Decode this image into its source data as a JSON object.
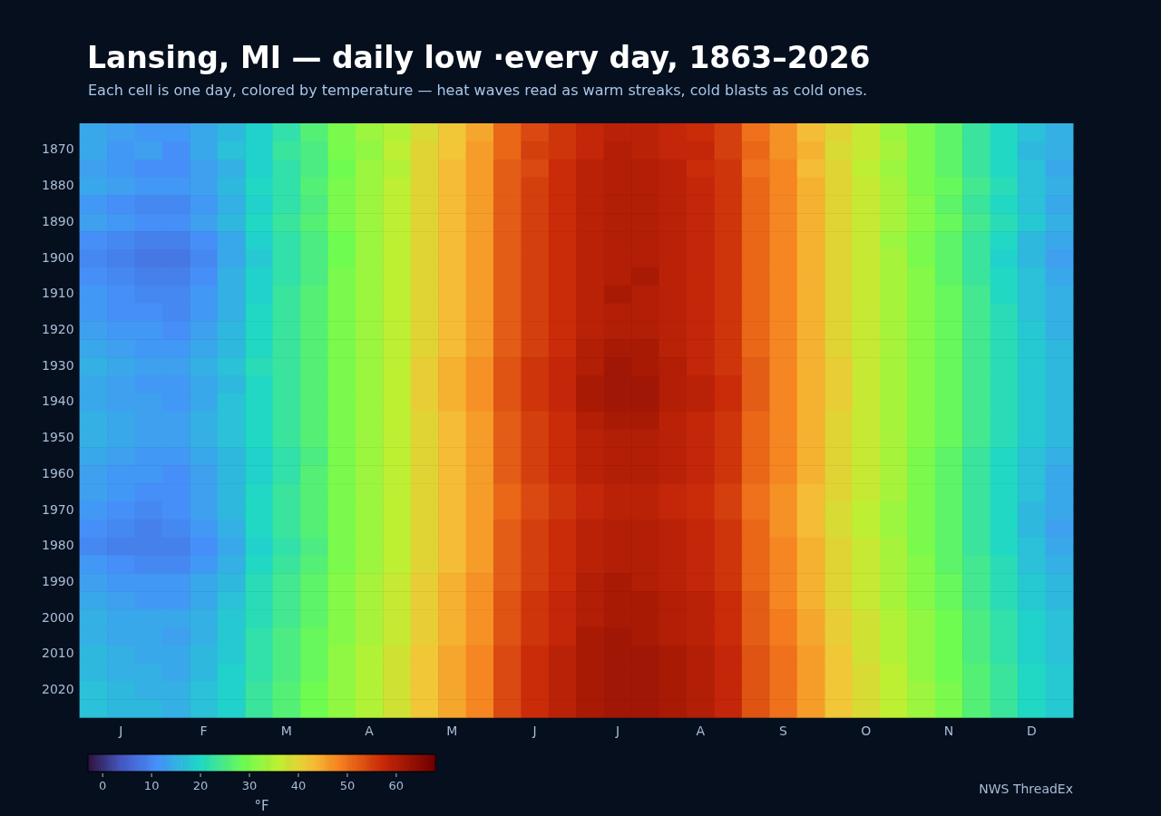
{
  "chart_data": {
    "type": "heatmap",
    "title": "Lansing, MI — daily low ·every day, 1863–2026",
    "subtitle": "Each cell is one day, colored by temperature — heat waves read as warm streaks, cold blasts as cold ones.",
    "categories": [
      null,
      "J",
      null,
      null,
      "F",
      null,
      null,
      "M",
      null,
      null,
      "A",
      null,
      null,
      "M",
      null,
      null,
      "J",
      null,
      null,
      "J",
      null,
      null,
      "A",
      null,
      null,
      "S",
      null,
      null,
      "O",
      null,
      null,
      "N",
      null,
      null,
      "D",
      null
    ],
    "y_categories": [
      null,
      "1870",
      null,
      "1880",
      null,
      "1890",
      null,
      "1900",
      null,
      "1910",
      null,
      "1920",
      null,
      "1930",
      null,
      "1940",
      null,
      "1950",
      null,
      "1960",
      null,
      "1970",
      null,
      "1980",
      null,
      "1990",
      null,
      "2000",
      null,
      "2010",
      null,
      "2020",
      null
    ],
    "cells": [
      [
        14,
        13,
        12,
        12,
        14,
        16,
        19,
        22,
        26,
        30,
        33,
        35,
        39,
        42,
        45,
        51,
        54,
        56,
        58,
        59,
        59,
        58,
        57,
        55,
        50,
        47,
        43,
        40,
        37,
        33,
        30,
        27,
        23,
        20,
        17,
        15
      ],
      [
        14,
        12,
        13,
        11,
        14,
        17,
        19,
        23,
        25,
        30,
        32,
        36,
        40,
        42,
        46,
        51,
        55,
        56,
        58,
        60,
        59,
        58,
        58,
        55,
        51,
        47,
        44,
        39,
        37,
        34,
        30,
        27,
        23,
        20,
        16,
        15
      ],
      [
        13,
        12,
        11,
        11,
        13,
        15,
        19,
        22,
        25,
        29,
        33,
        35,
        40,
        43,
        46,
        52,
        54,
        57,
        59,
        60,
        60,
        59,
        57,
        56,
        50,
        48,
        43,
        40,
        36,
        33,
        30,
        27,
        23,
        20,
        17,
        14
      ],
      [
        14,
        13,
        12,
        12,
        13,
        16,
        20,
        22,
        26,
        30,
        33,
        36,
        40,
        43,
        46,
        52,
        55,
        57,
        59,
        60,
        60,
        59,
        58,
        56,
        51,
        48,
        44,
        40,
        37,
        34,
        30,
        28,
        24,
        21,
        17,
        15
      ],
      [
        12,
        11,
        10,
        10,
        12,
        15,
        19,
        22,
        25,
        30,
        33,
        36,
        40,
        43,
        46,
        52,
        55,
        57,
        59,
        60,
        60,
        59,
        58,
        56,
        51,
        48,
        44,
        40,
        37,
        34,
        31,
        27,
        23,
        20,
        17,
        14
      ],
      [
        13,
        12,
        11,
        11,
        13,
        16,
        20,
        23,
        26,
        30,
        33,
        36,
        40,
        43,
        46,
        52,
        55,
        57,
        59,
        60,
        60,
        59,
        58,
        56,
        51,
        48,
        44,
        40,
        37,
        34,
        31,
        28,
        24,
        21,
        18,
        15
      ],
      [
        11,
        10,
        9,
        9,
        11,
        14,
        19,
        22,
        25,
        29,
        33,
        36,
        40,
        43,
        46,
        52,
        55,
        57,
        59,
        60,
        60,
        59,
        58,
        56,
        51,
        48,
        44,
        40,
        37,
        33,
        30,
        27,
        23,
        20,
        16,
        14
      ],
      [
        10,
        9,
        8,
        8,
        10,
        14,
        18,
        22,
        25,
        29,
        33,
        36,
        40,
        43,
        46,
        52,
        55,
        57,
        59,
        60,
        60,
        59,
        58,
        56,
        51,
        48,
        44,
        40,
        37,
        34,
        30,
        27,
        23,
        19,
        16,
        13
      ],
      [
        11,
        10,
        9,
        9,
        11,
        15,
        19,
        22,
        25,
        30,
        33,
        36,
        40,
        43,
        46,
        52,
        55,
        57,
        59,
        60,
        61,
        59,
        58,
        56,
        51,
        48,
        44,
        40,
        37,
        34,
        31,
        27,
        23,
        20,
        17,
        14
      ],
      [
        12,
        11,
        10,
        10,
        12,
        15,
        19,
        23,
        26,
        30,
        33,
        36,
        40,
        43,
        46,
        52,
        55,
        57,
        59,
        61,
        60,
        59,
        58,
        56,
        51,
        48,
        44,
        40,
        37,
        34,
        31,
        28,
        24,
        20,
        17,
        15
      ],
      [
        12,
        11,
        11,
        10,
        12,
        15,
        20,
        23,
        26,
        30,
        33,
        36,
        40,
        43,
        46,
        52,
        55,
        57,
        59,
        60,
        60,
        59,
        58,
        56,
        51,
        48,
        44,
        40,
        37,
        34,
        31,
        28,
        24,
        21,
        17,
        15
      ],
      [
        13,
        12,
        12,
        11,
        13,
        16,
        20,
        23,
        26,
        30,
        33,
        36,
        40,
        43,
        46,
        52,
        55,
        57,
        59,
        60,
        60,
        59,
        58,
        56,
        51,
        48,
        44,
        40,
        37,
        34,
        31,
        28,
        24,
        21,
        18,
        15
      ],
      [
        14,
        13,
        12,
        12,
        14,
        16,
        20,
        23,
        26,
        30,
        33,
        36,
        40,
        43,
        46,
        52,
        55,
        57,
        60,
        61,
        61,
        59,
        58,
        56,
        51,
        48,
        44,
        40,
        37,
        34,
        31,
        28,
        24,
        21,
        18,
        16
      ],
      [
        15,
        14,
        13,
        13,
        15,
        17,
        21,
        23,
        26,
        30,
        33,
        36,
        41,
        44,
        47,
        53,
        56,
        58,
        60,
        62,
        61,
        60,
        58,
        56,
        52,
        48,
        44,
        41,
        37,
        34,
        31,
        28,
        24,
        21,
        18,
        16
      ],
      [
        14,
        13,
        12,
        12,
        14,
        16,
        20,
        23,
        26,
        30,
        33,
        36,
        41,
        44,
        47,
        53,
        56,
        58,
        61,
        62,
        62,
        60,
        59,
        57,
        52,
        48,
        44,
        41,
        37,
        34,
        31,
        28,
        24,
        21,
        18,
        16
      ],
      [
        14,
        13,
        13,
        12,
        14,
        17,
        20,
        23,
        26,
        30,
        33,
        36,
        41,
        44,
        47,
        53,
        56,
        58,
        61,
        62,
        62,
        60,
        59,
        57,
        52,
        48,
        44,
        41,
        37,
        34,
        31,
        28,
        24,
        21,
        18,
        16
      ],
      [
        15,
        14,
        13,
        13,
        15,
        17,
        20,
        23,
        26,
        30,
        33,
        36,
        40,
        43,
        46,
        52,
        55,
        57,
        60,
        61,
        61,
        59,
        58,
        56,
        51,
        48,
        44,
        40,
        37,
        34,
        31,
        28,
        24,
        21,
        18,
        16
      ],
      [
        15,
        14,
        13,
        13,
        15,
        17,
        20,
        23,
        26,
        30,
        33,
        36,
        40,
        43,
        46,
        52,
        55,
        57,
        59,
        60,
        60,
        59,
        58,
        56,
        51,
        48,
        44,
        40,
        37,
        34,
        31,
        28,
        24,
        21,
        18,
        16
      ],
      [
        14,
        13,
        12,
        12,
        14,
        16,
        19,
        22,
        25,
        30,
        33,
        36,
        40,
        43,
        46,
        52,
        55,
        57,
        59,
        60,
        60,
        59,
        58,
        56,
        51,
        48,
        44,
        40,
        37,
        34,
        30,
        27,
        23,
        20,
        17,
        15
      ],
      [
        13,
        12,
        12,
        11,
        13,
        16,
        19,
        22,
        26,
        30,
        33,
        36,
        40,
        43,
        46,
        52,
        55,
        57,
        59,
        60,
        60,
        59,
        58,
        56,
        51,
        48,
        44,
        40,
        37,
        34,
        30,
        27,
        23,
        20,
        17,
        14
      ],
      [
        13,
        12,
        11,
        11,
        13,
        16,
        20,
        23,
        26,
        30,
        33,
        36,
        40,
        43,
        46,
        51,
        54,
        56,
        58,
        59,
        59,
        58,
        57,
        55,
        50,
        47,
        43,
        40,
        37,
        34,
        30,
        27,
        23,
        20,
        17,
        14
      ],
      [
        12,
        11,
        10,
        11,
        13,
        16,
        20,
        23,
        26,
        30,
        33,
        36,
        40,
        43,
        46,
        51,
        54,
        56,
        58,
        59,
        59,
        58,
        57,
        55,
        50,
        47,
        43,
        39,
        36,
        33,
        30,
        27,
        23,
        20,
        16,
        14
      ],
      [
        11,
        10,
        9,
        10,
        12,
        15,
        20,
        23,
        26,
        30,
        33,
        36,
        40,
        43,
        46,
        52,
        55,
        57,
        59,
        60,
        60,
        59,
        58,
        56,
        51,
        47,
        43,
        39,
        36,
        33,
        30,
        27,
        23,
        20,
        16,
        13
      ],
      [
        10,
        9,
        9,
        9,
        11,
        14,
        19,
        22,
        25,
        30,
        33,
        36,
        40,
        43,
        46,
        52,
        55,
        57,
        59,
        60,
        60,
        59,
        58,
        56,
        51,
        48,
        44,
        40,
        37,
        34,
        30,
        27,
        23,
        20,
        17,
        14
      ],
      [
        12,
        11,
        10,
        10,
        12,
        15,
        20,
        23,
        26,
        30,
        33,
        36,
        40,
        43,
        46,
        52,
        55,
        57,
        59,
        60,
        60,
        59,
        58,
        56,
        51,
        48,
        44,
        40,
        37,
        34,
        31,
        27,
        24,
        21,
        17,
        15
      ],
      [
        13,
        12,
        12,
        12,
        14,
        16,
        21,
        24,
        27,
        31,
        34,
        37,
        41,
        44,
        47,
        52,
        55,
        57,
        60,
        61,
        60,
        59,
        58,
        56,
        51,
        48,
        44,
        40,
        37,
        34,
        31,
        28,
        24,
        21,
        18,
        16
      ],
      [
        14,
        13,
        12,
        12,
        14,
        17,
        21,
        24,
        27,
        31,
        34,
        37,
        41,
        44,
        47,
        53,
        56,
        58,
        60,
        61,
        61,
        60,
        59,
        57,
        52,
        48,
        44,
        40,
        37,
        34,
        31,
        28,
        24,
        21,
        18,
        16
      ],
      [
        15,
        14,
        14,
        14,
        15,
        18,
        21,
        24,
        27,
        31,
        34,
        37,
        41,
        44,
        47,
        53,
        56,
        58,
        60,
        61,
        61,
        60,
        59,
        57,
        52,
        49,
        45,
        41,
        38,
        35,
        32,
        29,
        25,
        22,
        19,
        17
      ],
      [
        15,
        14,
        14,
        13,
        15,
        18,
        22,
        25,
        28,
        31,
        34,
        37,
        41,
        44,
        47,
        53,
        56,
        58,
        61,
        62,
        61,
        60,
        59,
        57,
        52,
        49,
        45,
        41,
        38,
        35,
        32,
        29,
        25,
        22,
        19,
        17
      ],
      [
        16,
        15,
        14,
        14,
        16,
        18,
        22,
        25,
        28,
        32,
        35,
        38,
        42,
        45,
        48,
        54,
        57,
        59,
        61,
        62,
        62,
        61,
        60,
        58,
        53,
        50,
        46,
        42,
        38,
        35,
        32,
        29,
        25,
        22,
        19,
        17
      ],
      [
        16,
        15,
        15,
        14,
        16,
        19,
        22,
        25,
        28,
        32,
        35,
        38,
        42,
        45,
        48,
        54,
        57,
        59,
        61,
        62,
        62,
        61,
        60,
        58,
        53,
        50,
        46,
        42,
        39,
        36,
        32,
        29,
        26,
        23,
        20,
        18
      ],
      [
        17,
        16,
        15,
        15,
        17,
        19,
        23,
        26,
        29,
        32,
        35,
        38,
        42,
        45,
        48,
        54,
        57,
        59,
        61,
        62,
        62,
        61,
        60,
        58,
        53,
        50,
        46,
        42,
        39,
        36,
        33,
        30,
        26,
        23,
        20,
        18
      ],
      [
        17,
        16,
        16,
        15,
        17,
        19,
        23,
        26,
        29,
        32,
        35,
        38,
        42,
        45,
        48,
        54,
        57,
        59,
        61,
        62,
        62,
        61,
        60,
        58,
        53,
        50,
        46,
        42,
        39,
        36,
        33,
        30,
        26,
        23,
        20,
        18
      ]
    ],
    "clim": [
      -3,
      68
    ],
    "cticks": [
      0,
      10,
      20,
      30,
      40,
      50,
      60
    ],
    "clabel": "°F",
    "annotations": [
      "NWS ThreadEx"
    ]
  }
}
